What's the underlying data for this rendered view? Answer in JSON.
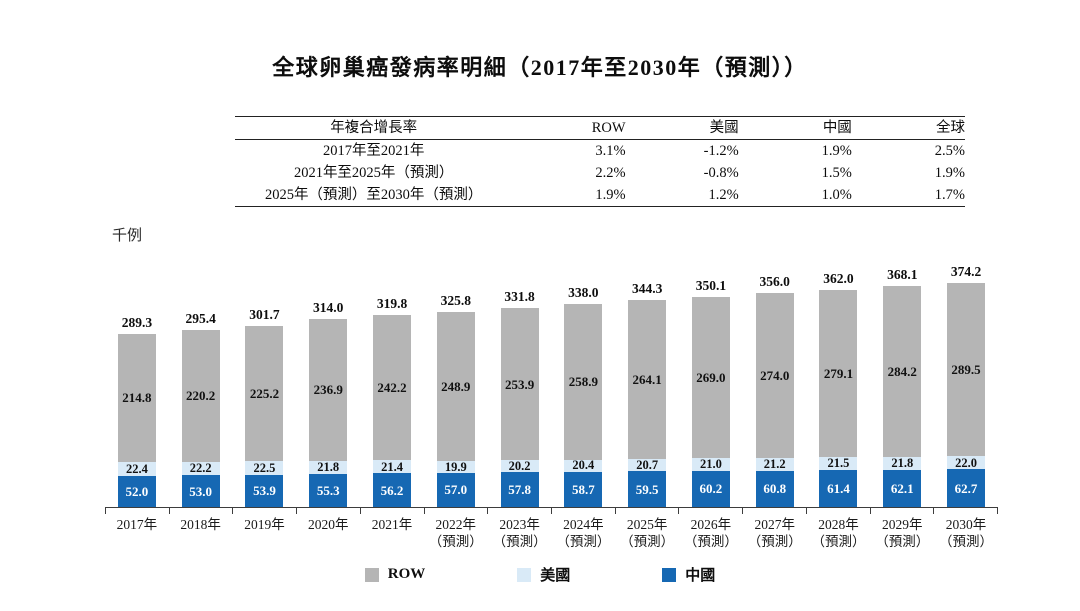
{
  "title": "全球卵巢癌發病率明細（2017年至2030年（預測））",
  "table": {
    "headers": [
      "年複合增長率",
      "ROW",
      "美國",
      "中國",
      "全球"
    ],
    "rows": [
      [
        "2017年至2021年",
        "3.1%",
        "-1.2%",
        "1.9%",
        "2.5%"
      ],
      [
        "2021年至2025年（預測）",
        "2.2%",
        "-0.8%",
        "1.5%",
        "1.9%"
      ],
      [
        "2025年（預測）至2030年（預測）",
        "1.9%",
        "1.2%",
        "1.0%",
        "1.7%"
      ]
    ]
  },
  "chart_data": {
    "type": "bar",
    "stacked": true,
    "title": "全球卵巢癌發病率明細（2017年至2030年（預測））",
    "ylabel": "千例",
    "xlabel": "",
    "grid": false,
    "legend_position": "bottom",
    "ylim": [
      0,
      400
    ],
    "categories": [
      "2017年",
      "2018年",
      "2019年",
      "2020年",
      "2021年",
      "2022年",
      "2023年",
      "2024年",
      "2025年",
      "2026年",
      "2027年",
      "2028年",
      "2029年",
      "2030年"
    ],
    "category_notes": [
      "",
      "",
      "",
      "",
      "",
      "（預測）",
      "（預測）",
      "（預測）",
      "（預測）",
      "（預測）",
      "（預測）",
      "（預測）",
      "（預測）",
      "（預測）"
    ],
    "series": [
      {
        "key": "row",
        "name": "ROW",
        "color": "#b5b5b5",
        "label_color": "#111111",
        "values": [
          214.8,
          220.2,
          225.2,
          236.9,
          242.2,
          248.9,
          253.9,
          258.9,
          264.1,
          269.0,
          274.0,
          279.1,
          284.2,
          289.5
        ]
      },
      {
        "key": "us",
        "name": "美國",
        "color": "#d9eaf7",
        "label_color": "#111111",
        "values": [
          22.4,
          22.2,
          22.5,
          21.8,
          21.4,
          19.9,
          20.2,
          20.4,
          20.7,
          21.0,
          21.2,
          21.5,
          21.8,
          22.0
        ]
      },
      {
        "key": "cn",
        "name": "中國",
        "color": "#1668b3",
        "label_color": "#ffffff",
        "values": [
          52.0,
          53.0,
          53.9,
          55.3,
          56.2,
          57.0,
          57.8,
          58.7,
          59.5,
          60.2,
          60.8,
          61.4,
          62.1,
          62.7
        ]
      }
    ],
    "totals": [
      289.3,
      295.4,
      301.7,
      314.0,
      319.8,
      325.8,
      331.8,
      338.0,
      344.3,
      350.1,
      356.0,
      362.0,
      368.1,
      374.2
    ],
    "stack_order_bottom_to_top": [
      "中國",
      "美國",
      "ROW"
    ]
  },
  "colors": {
    "row_gray": "#b5b5b5",
    "us_light_blue": "#d9eaf7",
    "china_blue": "#1668b3",
    "axis": "#3d3d3d",
    "text": "#111111"
  }
}
